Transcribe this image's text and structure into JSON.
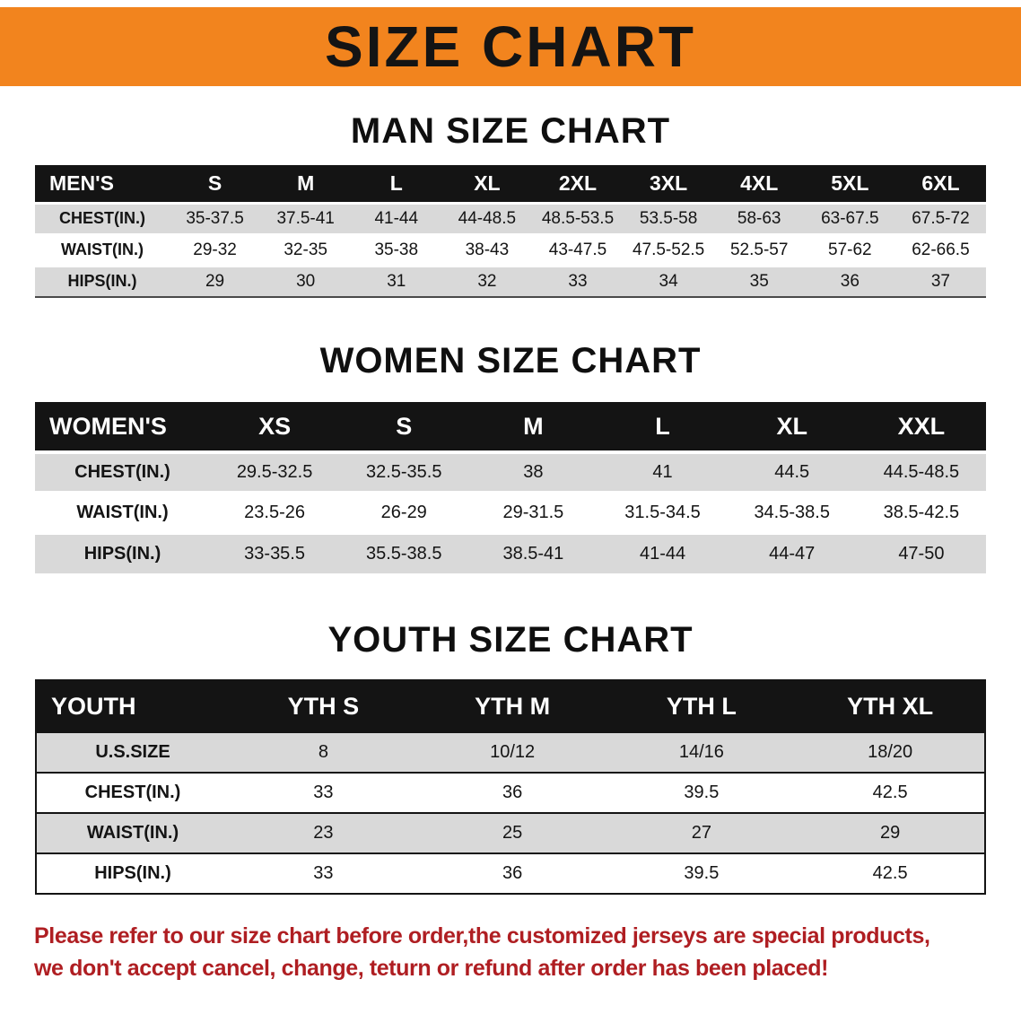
{
  "banner": {
    "title": "SIZE CHART",
    "bg_color": "#F2841E",
    "text_color": "#141414"
  },
  "sections": [
    {
      "heading": "MAN SIZE CHART",
      "table": {
        "name": "men",
        "header": [
          "MEN'S",
          "S",
          "M",
          "L",
          "XL",
          "2XL",
          "3XL",
          "4XL",
          "5XL",
          "6XL"
        ],
        "rows": [
          [
            "CHEST(IN.)",
            "35-37.5",
            "37.5-41",
            "41-44",
            "44-48.5",
            "48.5-53.5",
            "53.5-58",
            "58-63",
            "63-67.5",
            "67.5-72"
          ],
          [
            "WAIST(IN.)",
            "29-32",
            "32-35",
            "35-38",
            "38-43",
            "43-47.5",
            "47.5-52.5",
            "52.5-57",
            "57-62",
            "62-66.5"
          ],
          [
            "HIPS(IN.)",
            "29",
            "30",
            "31",
            "32",
            "33",
            "34",
            "35",
            "36",
            "37"
          ]
        ]
      }
    },
    {
      "heading": "WOMEN SIZE CHART",
      "table": {
        "name": "women",
        "header": [
          "WOMEN'S",
          "XS",
          "S",
          "M",
          "L",
          "XL",
          "XXL"
        ],
        "rows": [
          [
            "CHEST(IN.)",
            "29.5-32.5",
            "32.5-35.5",
            "38",
            "41",
            "44.5",
            "44.5-48.5"
          ],
          [
            "WAIST(IN.)",
            "23.5-26",
            "26-29",
            "29-31.5",
            "31.5-34.5",
            "34.5-38.5",
            "38.5-42.5"
          ],
          [
            "HIPS(IN.)",
            "33-35.5",
            "35.5-38.5",
            "38.5-41",
            "41-44",
            "44-47",
            "47-50"
          ]
        ]
      }
    },
    {
      "heading": "YOUTH SIZE CHART",
      "table": {
        "name": "youth",
        "header": [
          "YOUTH",
          "YTH S",
          "YTH M",
          "YTH L",
          "YTH XL"
        ],
        "rows": [
          [
            "U.S.SIZE",
            "8",
            "10/12",
            "14/16",
            "18/20"
          ],
          [
            "CHEST(IN.)",
            "33",
            "36",
            "39.5",
            "42.5"
          ],
          [
            "WAIST(IN.)",
            "23",
            "25",
            "27",
            "29"
          ],
          [
            "HIPS(IN.)",
            "33",
            "36",
            "39.5",
            "42.5"
          ]
        ]
      }
    }
  ],
  "disclaimer": {
    "line1": "Please refer to our size chart before order,the customized jerseys are special products,",
    "line2": "we don't accept cancel, change, teturn or refund after order has been placed!",
    "color": "#AF1E22"
  },
  "row_colors": {
    "stripe_gray": "#d9d9d9",
    "header_black": "#141414"
  }
}
